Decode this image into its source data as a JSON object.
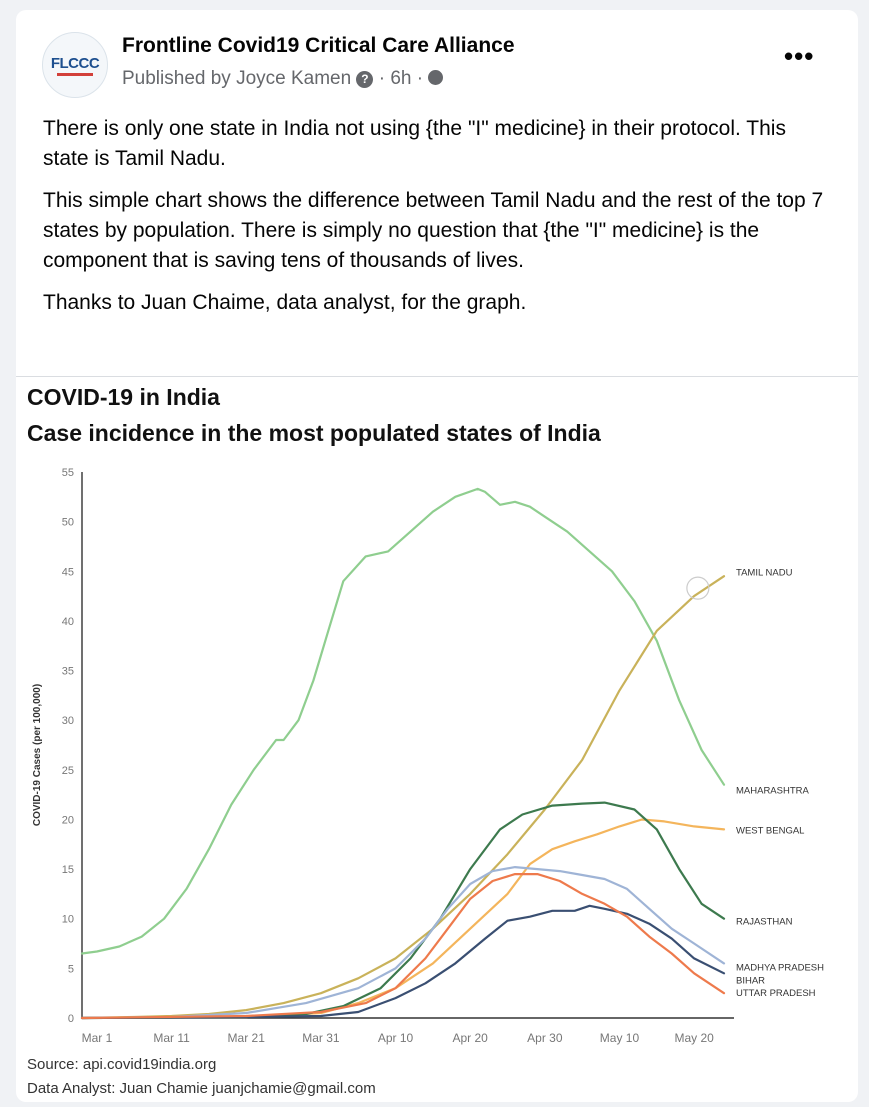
{
  "post": {
    "page_name": "Frontline Covid19 Critical Care Alliance",
    "avatar_text": "FLCCC",
    "published_by": "Published by Joyce Kamen",
    "time": "6h",
    "separator": "·",
    "more_label": "•••",
    "paragraphs": [
      "There is only one state in India not using {the \"I\" medicine} in their protocol. This state is Tamil Nadu.",
      "This simple chart shows the difference between Tamil Nadu and the rest of the top 7 states by population. There is simply no question that {the \"I\" medicine} is the component that is saving tens of thousands of lives.",
      "Thanks to Juan Chaime, data analyst, for the graph."
    ]
  },
  "chart_data": {
    "type": "line",
    "title": "COVID-19 in India",
    "subtitle": "Case incidence in the most populated states of India",
    "xlabel": "",
    "ylabel": "COVID-19 Cases (per 100,000)",
    "ylim": [
      0,
      55
    ],
    "yticks": [
      0,
      5,
      10,
      15,
      20,
      25,
      30,
      35,
      40,
      45,
      50,
      55
    ],
    "x_ticks": [
      {
        "day": 0,
        "label": "Mar 1"
      },
      {
        "day": 10,
        "label": "Mar 11"
      },
      {
        "day": 20,
        "label": "Mar 21"
      },
      {
        "day": 30,
        "label": "Mar 31"
      },
      {
        "day": 40,
        "label": "Apr 10"
      },
      {
        "day": 50,
        "label": "Apr 20"
      },
      {
        "day": 60,
        "label": "Apr 30"
      },
      {
        "day": 70,
        "label": "May 10"
      },
      {
        "day": 80,
        "label": "May 20"
      }
    ],
    "xlim": [
      -2,
      84
    ],
    "series": [
      {
        "name": "MAHARASHTRA",
        "color": "#8fce8f",
        "points": [
          [
            -2,
            6.5
          ],
          [
            0,
            6.7
          ],
          [
            3,
            7.2
          ],
          [
            6,
            8.2
          ],
          [
            9,
            10
          ],
          [
            12,
            13
          ],
          [
            15,
            17
          ],
          [
            18,
            21.5
          ],
          [
            21,
            25
          ],
          [
            24,
            28
          ],
          [
            25,
            28
          ],
          [
            27,
            30
          ],
          [
            29,
            34
          ],
          [
            31,
            39
          ],
          [
            33,
            44
          ],
          [
            36,
            46.5
          ],
          [
            39,
            47
          ],
          [
            42,
            49
          ],
          [
            45,
            51
          ],
          [
            48,
            52.5
          ],
          [
            51,
            53.3
          ],
          [
            52,
            53
          ],
          [
            54,
            51.7
          ],
          [
            56,
            52
          ],
          [
            58,
            51.5
          ],
          [
            60,
            50.5
          ],
          [
            63,
            49
          ],
          [
            66,
            47
          ],
          [
            69,
            45
          ],
          [
            72,
            42
          ],
          [
            75,
            38
          ],
          [
            78,
            32
          ],
          [
            81,
            27
          ],
          [
            84,
            23.5
          ]
        ]
      },
      {
        "name": "TAMIL NADU",
        "color": "#c9b25a",
        "points": [
          [
            -2,
            0
          ],
          [
            5,
            0.1
          ],
          [
            10,
            0.2
          ],
          [
            15,
            0.4
          ],
          [
            20,
            0.8
          ],
          [
            25,
            1.5
          ],
          [
            30,
            2.5
          ],
          [
            35,
            4
          ],
          [
            40,
            6
          ],
          [
            45,
            9
          ],
          [
            50,
            12.5
          ],
          [
            55,
            16.5
          ],
          [
            60,
            21
          ],
          [
            65,
            26
          ],
          [
            70,
            33
          ],
          [
            75,
            39
          ],
          [
            80,
            42.5
          ],
          [
            84,
            44.5
          ]
        ]
      },
      {
        "name": "WEST BENGAL",
        "color": "#f4b55c",
        "points": [
          [
            -2,
            0
          ],
          [
            10,
            0.05
          ],
          [
            20,
            0.1
          ],
          [
            30,
            0.5
          ],
          [
            35,
            1.5
          ],
          [
            40,
            3
          ],
          [
            45,
            5.5
          ],
          [
            50,
            9
          ],
          [
            55,
            12.5
          ],
          [
            58,
            15.5
          ],
          [
            61,
            17
          ],
          [
            64,
            17.8
          ],
          [
            67,
            18.5
          ],
          [
            70,
            19.3
          ],
          [
            73,
            20
          ],
          [
            76,
            19.8
          ],
          [
            80,
            19.3
          ],
          [
            84,
            19
          ]
        ]
      },
      {
        "name": "RAJASTHAN",
        "color": "#3d7a4e",
        "points": [
          [
            -2,
            0
          ],
          [
            10,
            0.05
          ],
          [
            20,
            0.1
          ],
          [
            28,
            0.4
          ],
          [
            33,
            1.2
          ],
          [
            38,
            3
          ],
          [
            42,
            6
          ],
          [
            46,
            10
          ],
          [
            50,
            15
          ],
          [
            54,
            19
          ],
          [
            57,
            20.5
          ],
          [
            61,
            21.4
          ],
          [
            65,
            21.6
          ],
          [
            68,
            21.7
          ],
          [
            72,
            21
          ],
          [
            75,
            19
          ],
          [
            78,
            15
          ],
          [
            81,
            11.5
          ],
          [
            84,
            10
          ]
        ]
      },
      {
        "name": "MADHYA PRADESH",
        "color": "#9fb4d6",
        "points": [
          [
            -2,
            0
          ],
          [
            10,
            0.1
          ],
          [
            20,
            0.5
          ],
          [
            28,
            1.5
          ],
          [
            35,
            3
          ],
          [
            40,
            5
          ],
          [
            44,
            8
          ],
          [
            47,
            11
          ],
          [
            50,
            13.5
          ],
          [
            53,
            14.8
          ],
          [
            56,
            15.2
          ],
          [
            59,
            15
          ],
          [
            62,
            14.8
          ],
          [
            65,
            14.4
          ],
          [
            68,
            14
          ],
          [
            71,
            13
          ],
          [
            74,
            11
          ],
          [
            77,
            9
          ],
          [
            80,
            7.5
          ],
          [
            84,
            5.5
          ]
        ]
      },
      {
        "name": "BIHAR",
        "color": "#3a4f72",
        "points": [
          [
            -2,
            0
          ],
          [
            20,
            0.1
          ],
          [
            30,
            0.2
          ],
          [
            35,
            0.6
          ],
          [
            40,
            2
          ],
          [
            44,
            3.5
          ],
          [
            48,
            5.5
          ],
          [
            52,
            8
          ],
          [
            55,
            9.8
          ],
          [
            58,
            10.2
          ],
          [
            61,
            10.8
          ],
          [
            64,
            10.8
          ],
          [
            66,
            11.3
          ],
          [
            68,
            11
          ],
          [
            71,
            10.5
          ],
          [
            74,
            9.5
          ],
          [
            77,
            8
          ],
          [
            80,
            6
          ],
          [
            84,
            4.5
          ]
        ]
      },
      {
        "name": "UTTAR PRADESH",
        "color": "#ee7a4c",
        "points": [
          [
            -2,
            0
          ],
          [
            20,
            0.2
          ],
          [
            30,
            0.6
          ],
          [
            36,
            1.5
          ],
          [
            40,
            3
          ],
          [
            44,
            6
          ],
          [
            47,
            9
          ],
          [
            50,
            12
          ],
          [
            53,
            13.8
          ],
          [
            56,
            14.5
          ],
          [
            59,
            14.5
          ],
          [
            62,
            13.8
          ],
          [
            65,
            12.5
          ],
          [
            68,
            11.5
          ],
          [
            71,
            10.2
          ],
          [
            74,
            8.2
          ],
          [
            77,
            6.5
          ],
          [
            80,
            4.5
          ],
          [
            84,
            2.5
          ]
        ]
      }
    ],
    "label_y": {
      "TAMIL NADU": 45,
      "MAHARASHTRA": 23,
      "WEST BENGAL": 19,
      "RAJASTHAN": 9.8,
      "MADHYA PRADESH": 5.2,
      "BIHAR": 3.9,
      "UTTAR PRADESH": 2.6
    },
    "source": "Source: api.covid19india.org",
    "analyst": "Data Analyst: Juan Chamie juanjchamie@gmail.com"
  }
}
